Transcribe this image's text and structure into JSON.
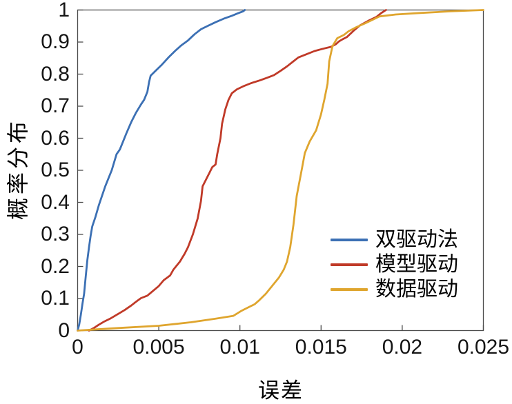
{
  "chart_data": {
    "type": "line",
    "title": "",
    "xlabel": "误差",
    "ylabel": "概率分布",
    "xlim": [
      0,
      0.025
    ],
    "ylim": [
      0,
      1
    ],
    "grid": false,
    "box": true,
    "tick_direction": "in",
    "axis_color": "#4a4a4a",
    "tick_label_color": "#151515",
    "legend": {
      "position": "inside-lower-right",
      "frame": false
    },
    "x_ticks": [
      {
        "v": 0,
        "label": "0"
      },
      {
        "v": 0.005,
        "label": "0.005"
      },
      {
        "v": 0.01,
        "label": "0.01"
      },
      {
        "v": 0.015,
        "label": "0.015"
      },
      {
        "v": 0.02,
        "label": "0.02"
      },
      {
        "v": 0.025,
        "label": "0.025"
      }
    ],
    "y_ticks": [
      {
        "v": 0,
        "label": "0"
      },
      {
        "v": 0.1,
        "label": "0.1"
      },
      {
        "v": 0.2,
        "label": "0.2"
      },
      {
        "v": 0.3,
        "label": "0.3"
      },
      {
        "v": 0.4,
        "label": "0.4"
      },
      {
        "v": 0.5,
        "label": "0.5"
      },
      {
        "v": 0.6,
        "label": "0.6"
      },
      {
        "v": 0.7,
        "label": "0.7"
      },
      {
        "v": 0.8,
        "label": "0.8"
      },
      {
        "v": 0.9,
        "label": "0.9"
      },
      {
        "v": 1,
        "label": "1"
      }
    ],
    "series": [
      {
        "name": "双驱动法",
        "color": "#3c70b4",
        "points": [
          [
            0,
            0
          ],
          [
            0.0001,
            0.02
          ],
          [
            0.0002,
            0.05
          ],
          [
            0.0003,
            0.085
          ],
          [
            0.0004,
            0.115
          ],
          [
            0.0005,
            0.17
          ],
          [
            0.0006,
            0.22
          ],
          [
            0.0007,
            0.26
          ],
          [
            0.0008,
            0.295
          ],
          [
            0.0009,
            0.325
          ],
          [
            0.0011,
            0.355
          ],
          [
            0.0013,
            0.39
          ],
          [
            0.0015,
            0.42
          ],
          [
            0.0017,
            0.45
          ],
          [
            0.0019,
            0.475
          ],
          [
            0.0021,
            0.5
          ],
          [
            0.0024,
            0.55
          ],
          [
            0.0026,
            0.565
          ],
          [
            0.0028,
            0.59
          ],
          [
            0.003,
            0.615
          ],
          [
            0.0033,
            0.65
          ],
          [
            0.0036,
            0.68
          ],
          [
            0.0039,
            0.705
          ],
          [
            0.0041,
            0.72
          ],
          [
            0.0043,
            0.745
          ],
          [
            0.0044,
            0.775
          ],
          [
            0.0045,
            0.795
          ],
          [
            0.0048,
            0.81
          ],
          [
            0.0052,
            0.83
          ],
          [
            0.0056,
            0.852
          ],
          [
            0.006,
            0.872
          ],
          [
            0.0064,
            0.89
          ],
          [
            0.0068,
            0.905
          ],
          [
            0.0072,
            0.924
          ],
          [
            0.0076,
            0.94
          ],
          [
            0.008,
            0.95
          ],
          [
            0.0085,
            0.962
          ],
          [
            0.009,
            0.973
          ],
          [
            0.0095,
            0.982
          ],
          [
            0.0099,
            0.99
          ],
          [
            0.0102,
            0.996
          ],
          [
            0.0103,
            1
          ]
        ]
      },
      {
        "name": "模型驱动",
        "color": "#c03a28",
        "points": [
          [
            0.0007,
            0
          ],
          [
            0.001,
            0.008
          ],
          [
            0.0013,
            0.018
          ],
          [
            0.0016,
            0.027
          ],
          [
            0.002,
            0.037
          ],
          [
            0.0025,
            0.052
          ],
          [
            0.0029,
            0.064
          ],
          [
            0.0033,
            0.078
          ],
          [
            0.0036,
            0.09
          ],
          [
            0.0039,
            0.101
          ],
          [
            0.0043,
            0.109
          ],
          [
            0.0046,
            0.122
          ],
          [
            0.005,
            0.139
          ],
          [
            0.0053,
            0.157
          ],
          [
            0.0057,
            0.172
          ],
          [
            0.0059,
            0.19
          ],
          [
            0.0063,
            0.215
          ],
          [
            0.0066,
            0.24
          ],
          [
            0.0068,
            0.26
          ],
          [
            0.0071,
            0.3
          ],
          [
            0.0074,
            0.35
          ],
          [
            0.0076,
            0.405
          ],
          [
            0.0077,
            0.45
          ],
          [
            0.0079,
            0.47
          ],
          [
            0.0081,
            0.49
          ],
          [
            0.0083,
            0.51
          ],
          [
            0.0085,
            0.518
          ],
          [
            0.0086,
            0.55
          ],
          [
            0.0088,
            0.6
          ],
          [
            0.0089,
            0.645
          ],
          [
            0.0091,
            0.69
          ],
          [
            0.0093,
            0.72
          ],
          [
            0.0095,
            0.74
          ],
          [
            0.0098,
            0.752
          ],
          [
            0.0102,
            0.762
          ],
          [
            0.0107,
            0.772
          ],
          [
            0.0112,
            0.78
          ],
          [
            0.0117,
            0.789
          ],
          [
            0.0121,
            0.797
          ],
          [
            0.0125,
            0.81
          ],
          [
            0.0129,
            0.824
          ],
          [
            0.0133,
            0.84
          ],
          [
            0.0136,
            0.852
          ],
          [
            0.0141,
            0.862
          ],
          [
            0.0146,
            0.872
          ],
          [
            0.0151,
            0.879
          ],
          [
            0.0156,
            0.885
          ],
          [
            0.0159,
            0.893
          ],
          [
            0.0161,
            0.902
          ],
          [
            0.0163,
            0.908
          ],
          [
            0.0166,
            0.916
          ],
          [
            0.017,
            0.935
          ],
          [
            0.0174,
            0.952
          ],
          [
            0.0179,
            0.966
          ],
          [
            0.0184,
            0.978
          ],
          [
            0.0187,
            0.99
          ],
          [
            0.019,
            1
          ]
        ]
      },
      {
        "name": "数据驱动",
        "color": "#dfa52e",
        "points": [
          [
            0,
            0
          ],
          [
            0.0025,
            0.008
          ],
          [
            0.005,
            0.015
          ],
          [
            0.007,
            0.026
          ],
          [
            0.0085,
            0.037
          ],
          [
            0.0096,
            0.046
          ],
          [
            0.0101,
            0.062
          ],
          [
            0.0105,
            0.072
          ],
          [
            0.0109,
            0.082
          ],
          [
            0.0112,
            0.095
          ],
          [
            0.0116,
            0.115
          ],
          [
            0.012,
            0.14
          ],
          [
            0.0124,
            0.165
          ],
          [
            0.0127,
            0.19
          ],
          [
            0.0129,
            0.215
          ],
          [
            0.0131,
            0.26
          ],
          [
            0.0133,
            0.33
          ],
          [
            0.0135,
            0.42
          ],
          [
            0.0138,
            0.5
          ],
          [
            0.014,
            0.554
          ],
          [
            0.0143,
            0.59
          ],
          [
            0.0147,
            0.625
          ],
          [
            0.015,
            0.675
          ],
          [
            0.0152,
            0.72
          ],
          [
            0.0154,
            0.77
          ],
          [
            0.0155,
            0.84
          ],
          [
            0.0157,
            0.887
          ],
          [
            0.016,
            0.912
          ],
          [
            0.0164,
            0.922
          ],
          [
            0.0167,
            0.934
          ],
          [
            0.0172,
            0.947
          ],
          [
            0.0177,
            0.958
          ],
          [
            0.0182,
            0.97
          ],
          [
            0.0186,
            0.98
          ],
          [
            0.0196,
            0.986
          ],
          [
            0.0212,
            0.991
          ],
          [
            0.023,
            0.996
          ],
          [
            0.025,
            1
          ]
        ]
      }
    ]
  }
}
